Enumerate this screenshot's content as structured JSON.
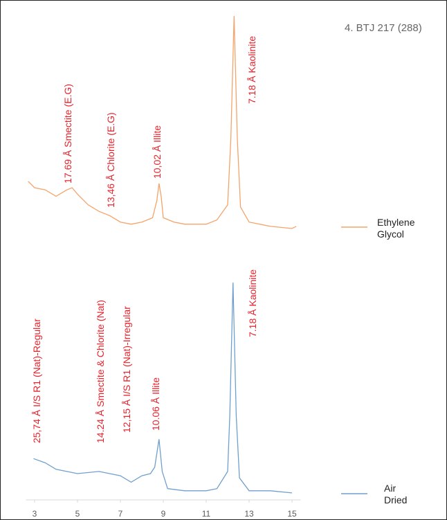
{
  "chart_data": [
    {
      "type": "line",
      "title": "4. BTJ 217 (288)",
      "x": [
        2.7,
        3.0,
        3.5,
        4.0,
        4.5,
        4.75,
        5.0,
        5.5,
        6.0,
        6.5,
        7.0,
        7.5,
        8.0,
        8.5,
        8.7,
        8.8,
        8.9,
        9.0,
        9.5,
        10,
        11,
        11.5,
        12.0,
        12.15,
        12.3,
        12.45,
        12.6,
        13,
        14,
        15,
        15.2
      ],
      "series": [
        {
          "name": "Ethylene Glycol",
          "color": "#f4a36a",
          "values": [
            22,
            19,
            18,
            15,
            18,
            19,
            16,
            11,
            8,
            6,
            3,
            2,
            3,
            5,
            13,
            21,
            15,
            5,
            3,
            2,
            2,
            4,
            11,
            42,
            99,
            42,
            10,
            3,
            1,
            0,
            1
          ]
        }
      ],
      "annotations": [
        "17.69 Å Smectite (E.G)",
        "13,46 Å Chlorite (E.G)",
        "10,02 Å Illite",
        "7.18 Å Kaolinite"
      ],
      "xlim": [
        2.6,
        15.4
      ],
      "ylim": [
        0,
        100
      ]
    },
    {
      "type": "line",
      "x": [
        2.95,
        3.5,
        4,
        5,
        6,
        7,
        7.5,
        8.0,
        8.4,
        8.6,
        8.8,
        8.95,
        9.2,
        10,
        11,
        11.5,
        12.0,
        12.1,
        12.25,
        12.4,
        12.55,
        13,
        14,
        15
      ],
      "series": [
        {
          "name": "Air Dried",
          "color": "#6f9fcf",
          "values": [
            17,
            15,
            12,
            10,
            11,
            9,
            6,
            9,
            10,
            13,
            26,
            11,
            3,
            2,
            2,
            3,
            11,
            37,
            99,
            37,
            8,
            2,
            2,
            1
          ]
        }
      ],
      "annotations": [
        "25,74 Å I/S R1 (Nat)-Regular",
        "14.24 Å Smectite & Chlorite (Nat)",
        "12,15 Å I/S R1 (Nat)-Irregular",
        "10.06 Å Illite",
        "7.18 Å Kaolinite"
      ],
      "xlim": [
        2.6,
        15.4
      ],
      "ylim": [
        0,
        100
      ],
      "xticks": [
        3,
        5,
        7,
        9,
        11,
        13,
        15
      ]
    }
  ]
}
